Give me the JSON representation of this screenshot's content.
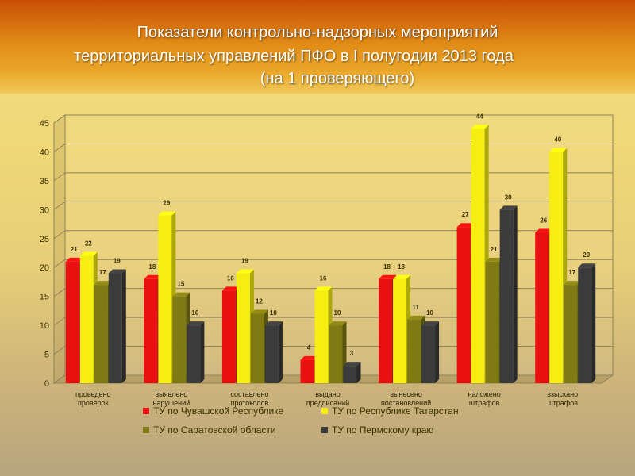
{
  "title": {
    "line1": "Показатели контрольно-надзорных мероприятий",
    "line2": "территориальных управлений ПФО в I полугодии 2013 года",
    "line3": "(на 1 проверяющего)"
  },
  "colors": {
    "series": [
      "#e81010",
      "#f5ee10",
      "#7f7a14",
      "#3b3b3b"
    ]
  },
  "chart_data": {
    "type": "bar",
    "title": "Показатели контрольно-надзорных мероприятий территориальных управлений ПФО в I полугодии 2013 года (на 1 проверяющего)",
    "categories": [
      [
        "проведено",
        "проверок"
      ],
      [
        "выявлено",
        "нарушений"
      ],
      [
        "составлено",
        "протоколов"
      ],
      [
        "выдано",
        "предписаний"
      ],
      [
        "вынесено",
        "постановлений"
      ],
      [
        "наложено",
        "штрафов"
      ],
      [
        "взыскано",
        "штрафов"
      ]
    ],
    "series": [
      {
        "name": "ТУ по Чувашской Республике",
        "values": [
          21,
          18,
          16,
          4,
          18,
          27,
          26
        ]
      },
      {
        "name": "ТУ по Республике Татарстан",
        "values": [
          22,
          29,
          19,
          16,
          18,
          44,
          40
        ]
      },
      {
        "name": "ТУ по Саратовской области",
        "values": [
          17,
          15,
          12,
          10,
          11,
          21,
          17
        ]
      },
      {
        "name": "ТУ по Пермскому краю",
        "values": [
          19,
          10,
          10,
          3,
          10,
          30,
          20
        ]
      }
    ],
    "yticks": [
      "0",
      "5",
      "10",
      "15",
      "20",
      "25",
      "30",
      "35",
      "40",
      "45"
    ],
    "ylim": [
      0,
      45
    ],
    "grid": true,
    "legend_position": "bottom"
  }
}
